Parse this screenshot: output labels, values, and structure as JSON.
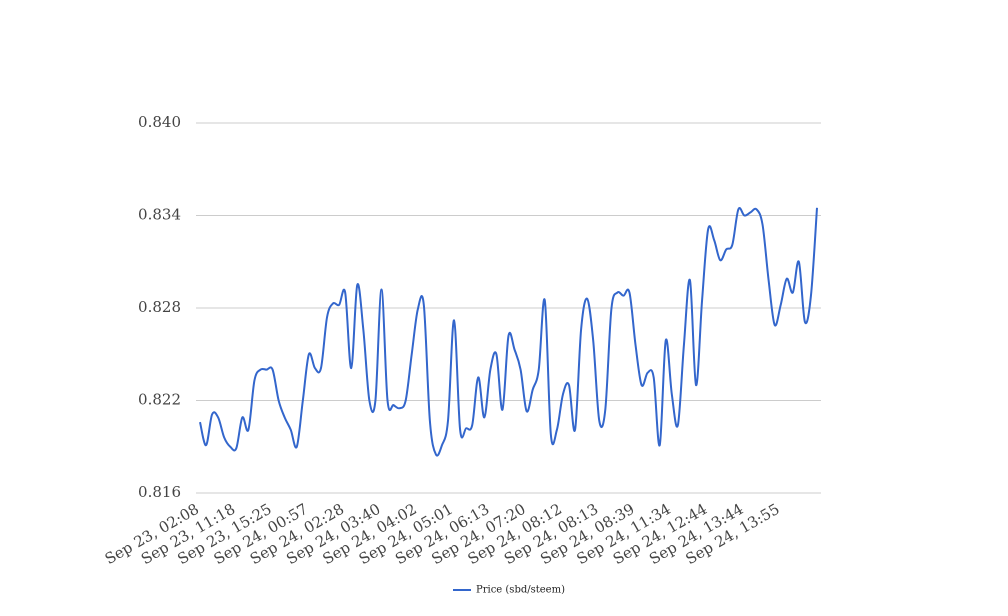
{
  "chart_data": {
    "type": "line",
    "categories": [
      "Sep 23, 02:08",
      null,
      null,
      null,
      null,
      null,
      "Sep 23, 11:18",
      null,
      null,
      null,
      null,
      null,
      "Sep 23, 15:25",
      null,
      null,
      null,
      null,
      null,
      "Sep 24, 00:57",
      null,
      null,
      null,
      null,
      null,
      "Sep 24, 02:28",
      null,
      null,
      null,
      null,
      null,
      "Sep 24, 03:40",
      null,
      null,
      null,
      null,
      null,
      "Sep 24, 04:02",
      null,
      null,
      null,
      null,
      null,
      "Sep 24, 05:01",
      null,
      null,
      null,
      null,
      null,
      "Sep 24, 06:13",
      null,
      null,
      null,
      null,
      null,
      "Sep 24, 07:20",
      null,
      null,
      null,
      null,
      null,
      "Sep 24, 08:12",
      null,
      null,
      null,
      null,
      null,
      "Sep 24, 08:13",
      null,
      null,
      null,
      null,
      null,
      "Sep 24, 08:39",
      null,
      null,
      null,
      null,
      null,
      "Sep 24, 11:34",
      null,
      null,
      null,
      null,
      null,
      "Sep 24, 12:44",
      null,
      null,
      null,
      null,
      null,
      "Sep 24, 13:44",
      null,
      null,
      null,
      null,
      null,
      "Sep 24, 13:55",
      null,
      null,
      null,
      null,
      null,
      null
    ],
    "series": [
      {
        "name": "Price (sbd/steem)",
        "color": "#3366cc",
        "values": [
          0.8206,
          0.8191,
          0.8211,
          0.8209,
          0.8196,
          0.819,
          0.8189,
          0.8209,
          0.8201,
          0.8233,
          0.824,
          0.824,
          0.824,
          0.822,
          0.8209,
          0.8201,
          0.819,
          0.822,
          0.825,
          0.8241,
          0.8241,
          0.8274,
          0.8283,
          0.8282,
          0.829,
          0.8241,
          0.8295,
          0.8266,
          0.822,
          0.822,
          0.8292,
          0.822,
          0.8217,
          0.8215,
          0.822,
          0.825,
          0.8279,
          0.8282,
          0.8207,
          0.8185,
          0.8191,
          0.8207,
          0.8272,
          0.8201,
          0.8202,
          0.8204,
          0.8235,
          0.8209,
          0.824,
          0.825,
          0.8214,
          0.8262,
          0.8253,
          0.824,
          0.8213,
          0.8227,
          0.824,
          0.8285,
          0.8198,
          0.8201,
          0.8224,
          0.823,
          0.8201,
          0.8266,
          0.8286,
          0.8259,
          0.8207,
          0.8214,
          0.8279,
          0.829,
          0.8288,
          0.829,
          0.8256,
          0.823,
          0.8238,
          0.8235,
          0.8191,
          0.8259,
          0.8224,
          0.8204,
          0.8256,
          0.8298,
          0.823,
          0.8285,
          0.8331,
          0.8324,
          0.8311,
          0.8318,
          0.8321,
          0.8344,
          0.834,
          0.8342,
          0.8344,
          0.8334,
          0.8298,
          0.8269,
          0.8282,
          0.8299,
          0.829,
          0.831,
          0.8271,
          0.8288,
          0.8345
        ]
      }
    ],
    "ylim": [
      0.816,
      0.84
    ],
    "yticks": [
      {
        "value": 0.816,
        "label": "0.816"
      },
      {
        "value": 0.822,
        "label": "0.822"
      },
      {
        "value": 0.828,
        "label": "0.828"
      },
      {
        "value": 0.834,
        "label": "0.834"
      },
      {
        "value": 0.84,
        "label": "0.840"
      }
    ],
    "grid": true,
    "legend": "bottom"
  }
}
